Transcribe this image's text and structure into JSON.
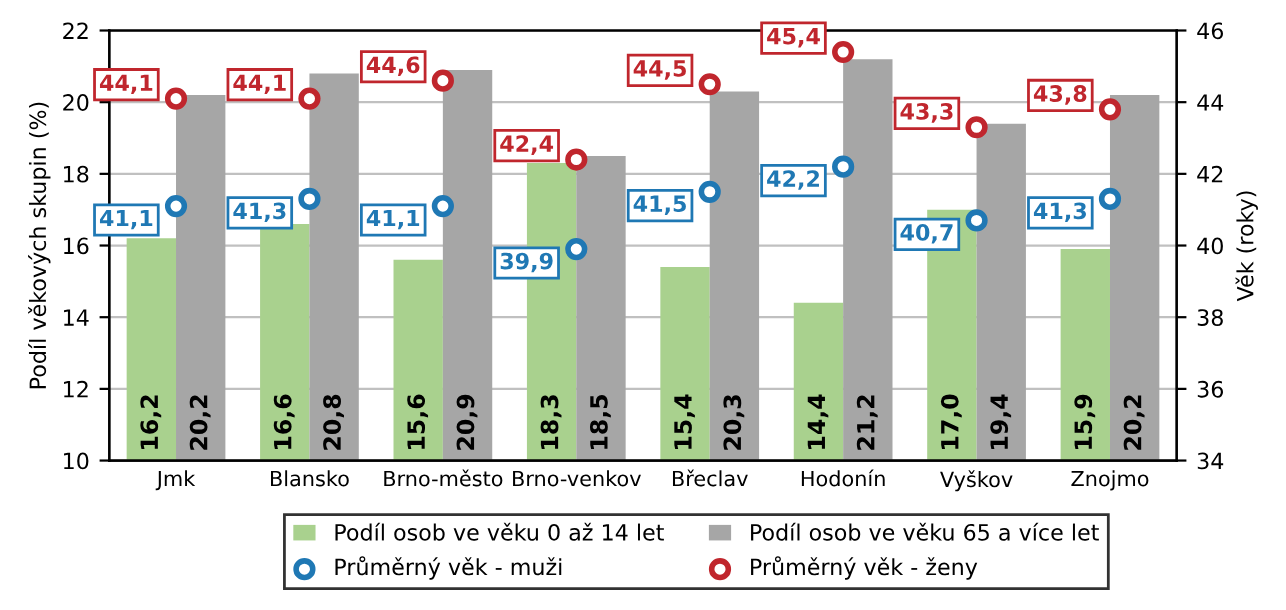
{
  "chart_data": {
    "type": "bar",
    "ylabel": "Podíl věkových skupin (%)",
    "y2label": "Věk (roky)",
    "categories": [
      "Jmk",
      "Blansko",
      "Brno-město",
      "Brno-venkov",
      "Břeclav",
      "Hodonín",
      "Vyškov",
      "Znojmo"
    ],
    "series": [
      {
        "name": "Podíl osob ve věku 0 až 14 let",
        "color": "#a9d18e",
        "values": [
          16.2,
          16.6,
          15.6,
          18.3,
          15.4,
          14.4,
          17.0,
          15.9
        ],
        "value_labels": [
          "16,2",
          "16,6",
          "15,6",
          "18,3",
          "15,4",
          "14,4",
          "17,0",
          "15,9"
        ]
      },
      {
        "name": "Podíl osob ve věku 65 a více let",
        "color": "#a6a6a6",
        "values": [
          20.2,
          20.8,
          20.9,
          18.5,
          20.3,
          21.2,
          19.4,
          20.2
        ],
        "value_labels": [
          "20,2",
          "20,8",
          "20,9",
          "18,5",
          "20,3",
          "21,2",
          "19,4",
          "20,2"
        ]
      },
      {
        "name": "Průměrný věk - muži",
        "type": "scatter",
        "axis": "y2",
        "marker": "circle",
        "color": "#1f78b4",
        "values": [
          41.1,
          41.3,
          41.1,
          39.9,
          41.5,
          42.2,
          40.7,
          41.3
        ],
        "value_labels": [
          "41,1",
          "41,3",
          "41,1",
          "39,9",
          "41,5",
          "42,2",
          "40,7",
          "41,3"
        ]
      },
      {
        "name": "Průměrný věk - ženy",
        "type": "scatter",
        "axis": "y2",
        "marker": "circle",
        "color": "#c0262d",
        "values": [
          44.1,
          44.1,
          44.6,
          42.4,
          44.5,
          45.4,
          43.3,
          43.8
        ],
        "value_labels": [
          "44,1",
          "44,1",
          "44,6",
          "42,4",
          "44,5",
          "45,4",
          "43,3",
          "43,8"
        ]
      }
    ],
    "ylim": [
      10,
      22
    ],
    "yticks": [
      10,
      12,
      14,
      16,
      18,
      20,
      22
    ],
    "y2lim": [
      34,
      46
    ],
    "y2ticks": [
      34,
      36,
      38,
      40,
      42,
      44,
      46
    ],
    "grid": "y",
    "legend": "bottom"
  }
}
